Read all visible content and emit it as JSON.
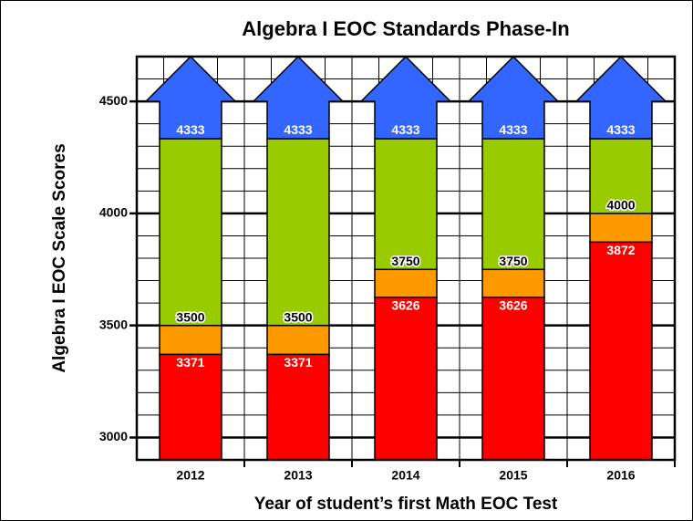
{
  "chart_data": {
    "type": "threshold-bar",
    "title": "Algebra I EOC Standards Phase-In",
    "y_label": "Algebra I EOC Scale Scores",
    "x_label": "Year of student’s first Math EOC Test",
    "categories": [
      "2012",
      "2013",
      "2014",
      "2015",
      "2016"
    ],
    "series": [
      {
        "color": "#ff0000",
        "label_color": "#ffffff",
        "values": [
          3371,
          3371,
          3626,
          3626,
          3872
        ]
      },
      {
        "color": "#ff9900",
        "label_color": "#000000",
        "values": [
          3500,
          3500,
          3750,
          3750,
          4000
        ]
      },
      {
        "color": "#99cc00",
        "label_color": "#ffffff",
        "values": [
          4333,
          4333,
          4333,
          4333,
          4333
        ]
      }
    ],
    "arrow_color": "#3366ff",
    "ylim": [
      2900,
      4700
    ],
    "yticks": [
      3000,
      3500,
      4000,
      4500
    ],
    "minor_yticks": [
      2900,
      3000,
      3100,
      3200,
      3300,
      3400,
      3500,
      3600,
      3700,
      3800,
      3900,
      4000,
      4100,
      4200,
      4300,
      4400,
      4500,
      4600,
      4700
    ],
    "grid": true
  }
}
